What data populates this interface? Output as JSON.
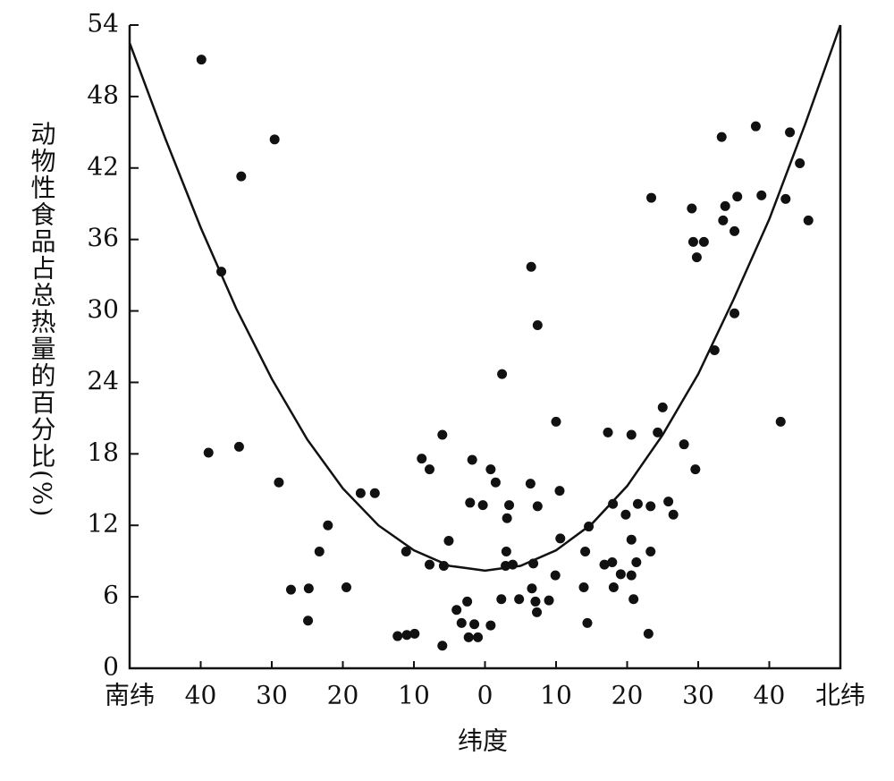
{
  "chart_data": {
    "type": "scatter",
    "x_label": "纬度",
    "y_label": "动物性食品占总热量的百分比(%)",
    "color": "#111111",
    "xlim": [
      -50,
      50
    ],
    "ylim": [
      0,
      54
    ],
    "xticks": [
      {
        "value": -50,
        "label": "南纬"
      },
      {
        "value": -40,
        "label": "40"
      },
      {
        "value": -30,
        "label": "30"
      },
      {
        "value": -20,
        "label": "20"
      },
      {
        "value": -10,
        "label": "10"
      },
      0,
      10,
      20,
      30,
      40,
      {
        "value": 50,
        "label": "北纬"
      }
    ],
    "yticks": [
      0,
      6,
      12,
      18,
      24,
      30,
      36,
      42,
      48,
      54
    ],
    "x": [
      -39.9,
      -37.1,
      -38.9,
      -34.3,
      -34.6,
      -29.6,
      -29,
      -27.3,
      -24.8,
      -24.9,
      -23.3,
      -22.1,
      -19.5,
      -17.5,
      -15.5,
      -12.3,
      -11,
      -9.9,
      -11.1,
      -8.9,
      -7.8,
      -7.8,
      -6,
      -6,
      -5.8,
      -5.1,
      -4,
      -3.3,
      -2.5,
      -2.3,
      -2.1,
      -1.8,
      -1.5,
      -1,
      -0.3,
      0.8,
      0.8,
      1.5,
      2.3,
      2.4,
      2.9,
      3,
      3.1,
      3.4,
      3.9,
      4.8,
      6.4,
      6.5,
      6.6,
      6.8,
      7.1,
      7.3,
      7.4,
      7.4,
      9,
      9.9,
      10,
      10.5,
      10.6,
      13.9,
      14.1,
      14.4,
      14.6,
      16.8,
      17.3,
      17.9,
      18.1,
      18,
      19.1,
      19.8,
      20.6,
      20.6,
      20.6,
      20.9,
      21.3,
      21.5,
      23,
      23.3,
      23.3,
      23.4,
      24.3,
      25,
      25.8,
      26.5,
      28,
      29.1,
      29.3,
      29.8,
      29.6,
      30.8,
      32.3,
      33.3,
      33.5,
      33.8,
      35.1,
      35.1,
      35.5,
      38.1,
      38.9,
      41.6,
      42.3,
      42.9,
      44.3,
      45.5
    ],
    "values": [
      51.1,
      33.3,
      18.1,
      41.3,
      18.6,
      44.4,
      15.6,
      6.6,
      6.7,
      4.0,
      9.8,
      12.0,
      6.8,
      14.7,
      14.7,
      2.7,
      2.8,
      2.9,
      9.8,
      17.6,
      16.7,
      8.7,
      19.6,
      1.9,
      8.6,
      10.7,
      4.9,
      3.8,
      5.6,
      2.6,
      13.9,
      17.5,
      3.7,
      2.6,
      13.7,
      3.6,
      16.7,
      15.6,
      5.8,
      24.7,
      8.6,
      9.8,
      12.6,
      13.7,
      8.7,
      5.8,
      15.5,
      33.7,
      6.7,
      8.8,
      5.6,
      4.7,
      28.8,
      13.6,
      5.7,
      7.8,
      20.7,
      14.9,
      10.9,
      6.8,
      9.8,
      3.8,
      11.9,
      8.7,
      19.8,
      8.9,
      6.8,
      13.8,
      7.9,
      12.9,
      19.6,
      10.8,
      7.8,
      5.8,
      8.9,
      13.8,
      2.9,
      13.6,
      9.8,
      39.5,
      19.8,
      21.9,
      14,
      12.9,
      18.8,
      38.6,
      35.8,
      34.5,
      16.7,
      35.8,
      26.7,
      44.6,
      37.6,
      38.8,
      36.7,
      29.8,
      39.6,
      45.5,
      39.7,
      20.7,
      39.4,
      45,
      42.4,
      37.6
    ],
    "curve": {
      "x": [
        -50,
        -45,
        -40,
        -35,
        -30,
        -25,
        -20,
        -15,
        -10,
        -5,
        0,
        5,
        10,
        15,
        20,
        25,
        30,
        35,
        40,
        45,
        50
      ],
      "values": [
        52.5,
        44.5,
        37,
        30.2,
        24.3,
        19.2,
        15.1,
        12,
        9.9,
        8.6,
        8.2,
        8.6,
        9.9,
        12.1,
        15.3,
        19.6,
        24.7,
        31,
        37.7,
        45.6,
        54
      ]
    }
  }
}
